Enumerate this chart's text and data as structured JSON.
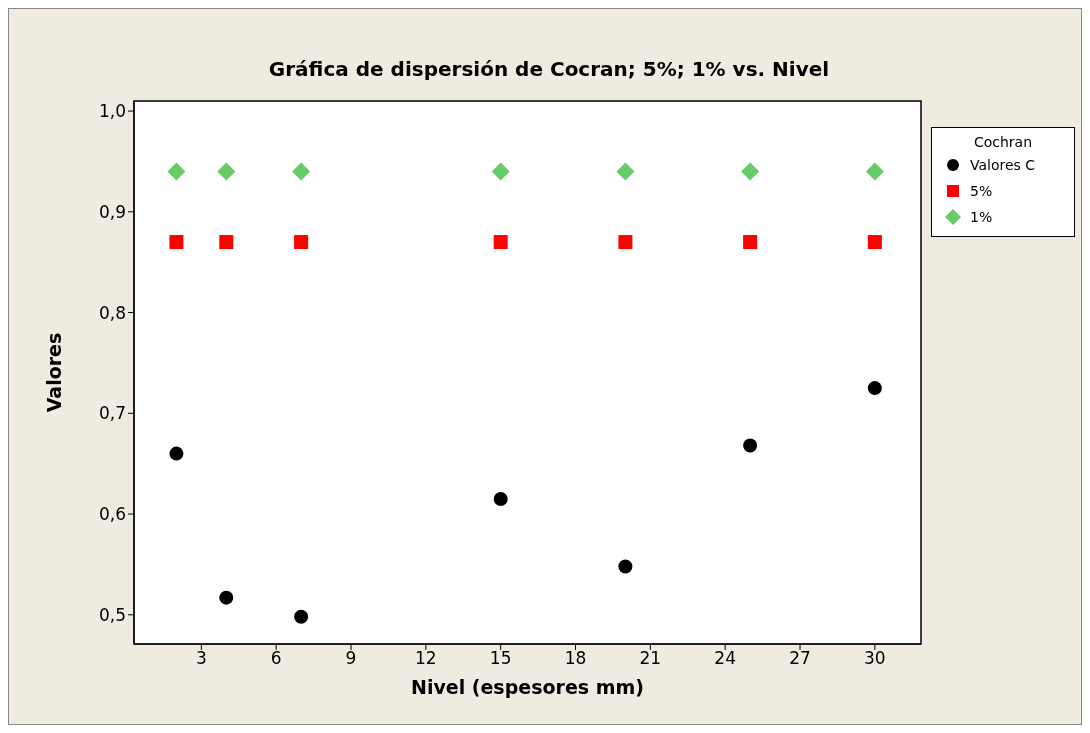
{
  "chart_data": {
    "type": "scatter",
    "title": "Gráfica de dispersión de Cocran; 5%; 1% vs. Nivel",
    "xlabel": "Nivel  (espesores mm)",
    "ylabel": "Valores",
    "legend_title": "Cochran",
    "legend": "right",
    "grid": false,
    "x": [
      2,
      4,
      7,
      15,
      20,
      25,
      30
    ],
    "series": [
      {
        "name": "Valores C",
        "color": "#000000",
        "marker": "circle",
        "values": [
          0.66,
          0.517,
          0.498,
          0.615,
          0.548,
          0.668,
          0.725
        ]
      },
      {
        "name": "5%",
        "color": "#ff0000",
        "marker": "square",
        "values": [
          0.87,
          0.87,
          0.87,
          0.87,
          0.87,
          0.87,
          0.87
        ]
      },
      {
        "name": "1%",
        "color": "#66cc66",
        "marker": "diamond",
        "values": [
          0.94,
          0.94,
          0.94,
          0.94,
          0.94,
          0.94,
          0.94
        ]
      }
    ],
    "xlim": [
      0.3,
      31.85
    ],
    "xticks": [
      3,
      6,
      9,
      12,
      15,
      18,
      21,
      24,
      27,
      30
    ],
    "ylim": [
      0.471,
      1.01
    ],
    "yticks": [
      {
        "value": 0.5,
        "label": "0,5"
      },
      {
        "value": 0.6,
        "label": "0,6"
      },
      {
        "value": 0.7,
        "label": "0,7"
      },
      {
        "value": 0.8,
        "label": "0,8"
      },
      {
        "value": 0.9,
        "label": "0,9"
      },
      {
        "value": 1.0,
        "label": "1,0"
      }
    ]
  }
}
